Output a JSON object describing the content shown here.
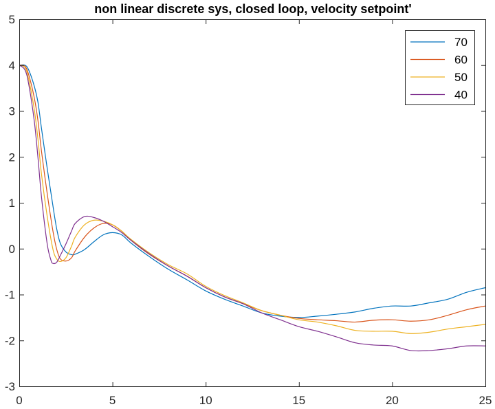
{
  "chart_data": {
    "type": "line",
    "title": "non linear discrete sys, closed loop, velocity setpoint'",
    "xlabel": "",
    "ylabel": "",
    "xlim": [
      0,
      25
    ],
    "ylim": [
      -3,
      5
    ],
    "x_ticks": [
      "0",
      "5",
      "10",
      "15",
      "20",
      "25"
    ],
    "y_ticks": [
      "5",
      "4",
      "3",
      "2",
      "1",
      "0",
      "-1",
      "-2",
      "-3"
    ],
    "x_tick_values": [
      0,
      5,
      10,
      15,
      20,
      25
    ],
    "y_tick_values": [
      5,
      4,
      3,
      2,
      1,
      0,
      -1,
      -2,
      -3
    ],
    "grid": false,
    "legend_position": "top-right",
    "series": [
      {
        "name": "70",
        "color": "#0072BD",
        "points": [
          [
            0,
            4.0
          ],
          [
            0.3,
            4.0
          ],
          [
            0.5,
            3.9
          ],
          [
            0.8,
            3.55
          ],
          [
            1.0,
            3.2
          ],
          [
            1.2,
            2.6
          ],
          [
            1.5,
            1.75
          ],
          [
            1.8,
            0.95
          ],
          [
            2.0,
            0.45
          ],
          [
            2.2,
            0.12
          ],
          [
            2.5,
            -0.07
          ],
          [
            2.8,
            -0.13
          ],
          [
            3.0,
            -0.12
          ],
          [
            3.5,
            -0.02
          ],
          [
            4.0,
            0.15
          ],
          [
            4.5,
            0.3
          ],
          [
            5.0,
            0.35
          ],
          [
            5.5,
            0.3
          ],
          [
            6.0,
            0.12
          ],
          [
            7.0,
            -0.18
          ],
          [
            8.0,
            -0.45
          ],
          [
            9.0,
            -0.68
          ],
          [
            10.0,
            -0.92
          ],
          [
            11.0,
            -1.1
          ],
          [
            12.0,
            -1.25
          ],
          [
            13.0,
            -1.4
          ],
          [
            14.0,
            -1.47
          ],
          [
            15.0,
            -1.5
          ],
          [
            16.0,
            -1.47
          ],
          [
            17.0,
            -1.43
          ],
          [
            18.0,
            -1.38
          ],
          [
            19.0,
            -1.3
          ],
          [
            20.0,
            -1.25
          ],
          [
            21.0,
            -1.25
          ],
          [
            22.0,
            -1.18
          ],
          [
            23.0,
            -1.1
          ],
          [
            24.0,
            -0.95
          ],
          [
            25.0,
            -0.85
          ]
        ]
      },
      {
        "name": "60",
        "color": "#D95319",
        "points": [
          [
            0,
            4.0
          ],
          [
            0.3,
            3.98
          ],
          [
            0.5,
            3.8
          ],
          [
            0.8,
            3.3
          ],
          [
            1.0,
            2.8
          ],
          [
            1.2,
            2.1
          ],
          [
            1.5,
            1.2
          ],
          [
            1.8,
            0.4
          ],
          [
            2.0,
            0.0
          ],
          [
            2.2,
            -0.22
          ],
          [
            2.5,
            -0.27
          ],
          [
            2.8,
            -0.2
          ],
          [
            3.0,
            -0.05
          ],
          [
            3.5,
            0.25
          ],
          [
            4.0,
            0.45
          ],
          [
            4.5,
            0.55
          ],
          [
            5.0,
            0.52
          ],
          [
            5.5,
            0.38
          ],
          [
            6.0,
            0.18
          ],
          [
            7.0,
            -0.13
          ],
          [
            8.0,
            -0.38
          ],
          [
            9.0,
            -0.6
          ],
          [
            10.0,
            -0.85
          ],
          [
            11.0,
            -1.05
          ],
          [
            12.0,
            -1.2
          ],
          [
            13.0,
            -1.35
          ],
          [
            14.0,
            -1.45
          ],
          [
            15.0,
            -1.52
          ],
          [
            16.0,
            -1.55
          ],
          [
            17.0,
            -1.57
          ],
          [
            18.0,
            -1.6
          ],
          [
            19.0,
            -1.56
          ],
          [
            20.0,
            -1.55
          ],
          [
            21.0,
            -1.58
          ],
          [
            22.0,
            -1.55
          ],
          [
            23.0,
            -1.45
          ],
          [
            24.0,
            -1.33
          ],
          [
            25.0,
            -1.25
          ]
        ]
      },
      {
        "name": "50",
        "color": "#EDB120",
        "points": [
          [
            0,
            4.0
          ],
          [
            0.3,
            3.95
          ],
          [
            0.5,
            3.7
          ],
          [
            0.8,
            3.05
          ],
          [
            1.0,
            2.4
          ],
          [
            1.2,
            1.6
          ],
          [
            1.5,
            0.7
          ],
          [
            1.8,
            0.0
          ],
          [
            2.0,
            -0.22
          ],
          [
            2.2,
            -0.28
          ],
          [
            2.5,
            -0.2
          ],
          [
            2.8,
            0.05
          ],
          [
            3.0,
            0.25
          ],
          [
            3.5,
            0.52
          ],
          [
            4.0,
            0.62
          ],
          [
            4.5,
            0.6
          ],
          [
            5.0,
            0.52
          ],
          [
            5.5,
            0.38
          ],
          [
            6.0,
            0.2
          ],
          [
            7.0,
            -0.1
          ],
          [
            8.0,
            -0.35
          ],
          [
            9.0,
            -0.55
          ],
          [
            10.0,
            -0.82
          ],
          [
            11.0,
            -1.02
          ],
          [
            12.0,
            -1.18
          ],
          [
            13.0,
            -1.35
          ],
          [
            14.0,
            -1.45
          ],
          [
            15.0,
            -1.55
          ],
          [
            16.0,
            -1.6
          ],
          [
            17.0,
            -1.68
          ],
          [
            18.0,
            -1.78
          ],
          [
            19.0,
            -1.8
          ],
          [
            20.0,
            -1.8
          ],
          [
            21.0,
            -1.85
          ],
          [
            22.0,
            -1.82
          ],
          [
            23.0,
            -1.75
          ],
          [
            24.0,
            -1.7
          ],
          [
            25.0,
            -1.65
          ]
        ]
      },
      {
        "name": "40",
        "color": "#7E2F8E",
        "points": [
          [
            0,
            4.0
          ],
          [
            0.3,
            3.9
          ],
          [
            0.5,
            3.6
          ],
          [
            0.8,
            2.8
          ],
          [
            1.0,
            2.0
          ],
          [
            1.2,
            1.1
          ],
          [
            1.5,
            0.1
          ],
          [
            1.7,
            -0.25
          ],
          [
            1.8,
            -0.32
          ],
          [
            2.0,
            -0.3
          ],
          [
            2.2,
            -0.15
          ],
          [
            2.5,
            0.1
          ],
          [
            2.8,
            0.38
          ],
          [
            3.0,
            0.55
          ],
          [
            3.5,
            0.7
          ],
          [
            4.0,
            0.68
          ],
          [
            4.5,
            0.6
          ],
          [
            5.0,
            0.48
          ],
          [
            5.5,
            0.35
          ],
          [
            6.0,
            0.18
          ],
          [
            7.0,
            -0.12
          ],
          [
            8.0,
            -0.38
          ],
          [
            9.0,
            -0.6
          ],
          [
            10.0,
            -0.85
          ],
          [
            11.0,
            -1.05
          ],
          [
            12.0,
            -1.2
          ],
          [
            13.0,
            -1.4
          ],
          [
            14.0,
            -1.55
          ],
          [
            15.0,
            -1.7
          ],
          [
            16.0,
            -1.8
          ],
          [
            17.0,
            -1.92
          ],
          [
            18.0,
            -2.05
          ],
          [
            19.0,
            -2.1
          ],
          [
            20.0,
            -2.12
          ],
          [
            21.0,
            -2.22
          ],
          [
            22.0,
            -2.22
          ],
          [
            23.0,
            -2.18
          ],
          [
            24.0,
            -2.12
          ],
          [
            25.0,
            -2.12
          ]
        ]
      }
    ]
  }
}
